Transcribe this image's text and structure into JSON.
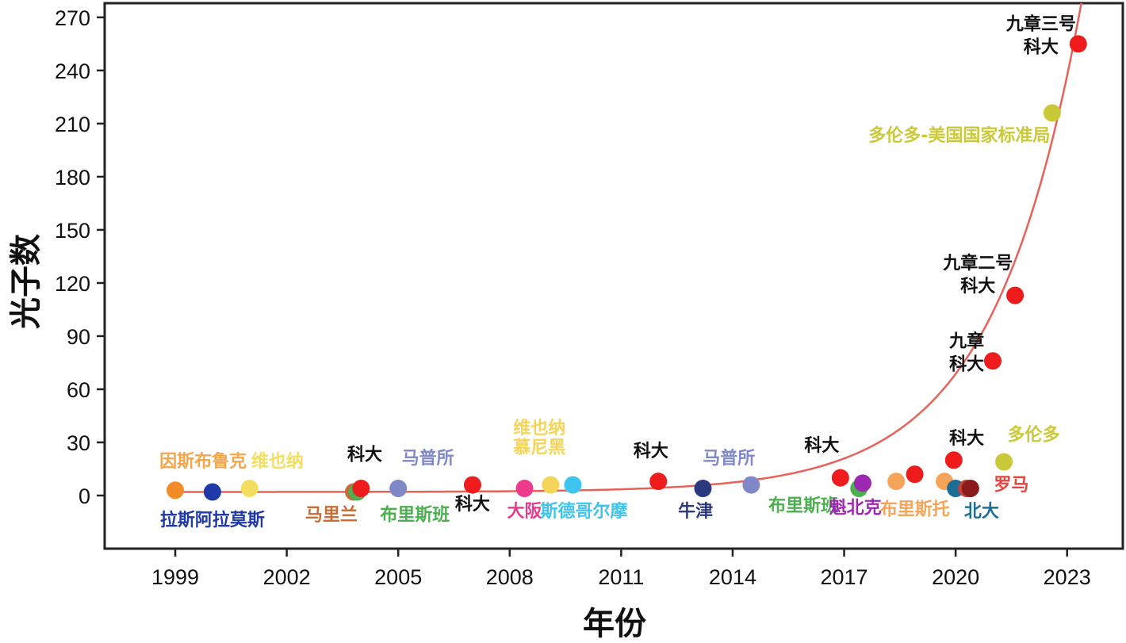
{
  "chart_data": {
    "type": "scatter",
    "title": "",
    "xlabel": "年份",
    "ylabel": "光子数",
    "xlim": [
      1997.1,
      2024.5
    ],
    "ylim": [
      -30,
      278
    ],
    "xticks": [
      1999,
      2002,
      2005,
      2008,
      2011,
      2014,
      2017,
      2020,
      2023
    ],
    "yticks": [
      0,
      30,
      60,
      90,
      120,
      150,
      180,
      210,
      240,
      270
    ],
    "grid": false,
    "trend_line": {
      "color": "#e8625a",
      "baseline": 2,
      "a": 1.0,
      "b": 0.42,
      "x0": 2010
    },
    "points": [
      {
        "x": 1999.0,
        "y": 3,
        "color": "#f28c28"
      },
      {
        "x": 2000.0,
        "y": 2,
        "color": "#1f3aa6"
      },
      {
        "x": 2001.0,
        "y": 4,
        "color": "#f3de5f"
      },
      {
        "x": 2003.8,
        "y": 2,
        "color": "#c96b35"
      },
      {
        "x": 2003.9,
        "y": 2,
        "color": "#4caf50"
      },
      {
        "x": 2004.0,
        "y": 4,
        "color": "#ee1c1c"
      },
      {
        "x": 2005.0,
        "y": 4,
        "color": "#8088c8"
      },
      {
        "x": 2007.0,
        "y": 6,
        "color": "#ee1c1c"
      },
      {
        "x": 2008.4,
        "y": 4,
        "color": "#ec3b8e"
      },
      {
        "x": 2009.1,
        "y": 6,
        "color": "#f5d45a"
      },
      {
        "x": 2009.7,
        "y": 6,
        "color": "#3fc4ee"
      },
      {
        "x": 2012.0,
        "y": 8,
        "color": "#ee1c1c"
      },
      {
        "x": 2013.2,
        "y": 4,
        "color": "#2b3a7e"
      },
      {
        "x": 2014.5,
        "y": 6,
        "color": "#8088c8"
      },
      {
        "x": 2016.9,
        "y": 10,
        "color": "#ee1c1c"
      },
      {
        "x": 2017.4,
        "y": 4,
        "color": "#4caf50"
      },
      {
        "x": 2017.5,
        "y": 7,
        "color": "#9c27b0"
      },
      {
        "x": 2018.4,
        "y": 8,
        "color": "#f5a45a"
      },
      {
        "x": 2018.9,
        "y": 12,
        "color": "#ee1c1c"
      },
      {
        "x": 2019.7,
        "y": 8,
        "color": "#f5a45a"
      },
      {
        "x": 2019.95,
        "y": 20,
        "color": "#ee1c1c"
      },
      {
        "x": 2020.0,
        "y": 4,
        "color": "#1c6e96"
      },
      {
        "x": 2020.3,
        "y": 4,
        "color": "#c6403a"
      },
      {
        "x": 2020.4,
        "y": 4,
        "color": "#8b1a1a"
      },
      {
        "x": 2021.0,
        "y": 76,
        "color": "#ee1c1c"
      },
      {
        "x": 2021.3,
        "y": 19,
        "color": "#c9c93a"
      },
      {
        "x": 2021.6,
        "y": 113,
        "color": "#ee1c1c"
      },
      {
        "x": 2022.6,
        "y": 216,
        "color": "#c9c93a"
      },
      {
        "x": 2023.3,
        "y": 255,
        "color": "#ee1c1c"
      }
    ],
    "annotations": [
      {
        "text": "因斯布鲁克",
        "x": 1999.75,
        "y": 16,
        "color": "#f5a64a"
      },
      {
        "text": "维也纳",
        "x": 2001.75,
        "y": 16,
        "color": "#f3de5f"
      },
      {
        "text": "拉斯阿拉莫斯",
        "x": 2000.0,
        "y": -17,
        "color": "#1f3aa6"
      },
      {
        "text": "科大",
        "x": 2004.1,
        "y": 20,
        "color": "#111111"
      },
      {
        "text": "马普所",
        "x": 2005.8,
        "y": 18,
        "color": "#8088c8"
      },
      {
        "text": "马里兰",
        "x": 2003.2,
        "y": -14,
        "color": "#c96b35"
      },
      {
        "text": "布里斯班",
        "x": 2005.45,
        "y": -14,
        "color": "#4caf50"
      },
      {
        "text": "科大",
        "x": 2007.0,
        "y": -8,
        "color": "#111111"
      },
      {
        "text": "维也纳",
        "x": 2008.8,
        "y": 35,
        "color": "#f5d45a"
      },
      {
        "text": "慕尼黑",
        "x": 2008.8,
        "y": 24,
        "color": "#f5d45a"
      },
      {
        "text": "大阪",
        "x": 2008.4,
        "y": -12,
        "color": "#ec3b8e"
      },
      {
        "text": "斯德哥尔摩",
        "x": 2010.0,
        "y": -12,
        "color": "#3fc4ee"
      },
      {
        "text": "科大",
        "x": 2011.8,
        "y": 22,
        "color": "#111111"
      },
      {
        "text": "马普所",
        "x": 2013.9,
        "y": 18,
        "color": "#8088c8"
      },
      {
        "text": "牛津",
        "x": 2013.0,
        "y": -12,
        "color": "#2b3a7e"
      },
      {
        "text": "布里斯班",
        "x": 2015.9,
        "y": -9,
        "color": "#4caf50"
      },
      {
        "text": "科大",
        "x": 2016.4,
        "y": 25,
        "color": "#111111"
      },
      {
        "text": "魁北克",
        "x": 2017.3,
        "y": -10,
        "color": "#9c27b0"
      },
      {
        "text": "布里斯托",
        "x": 2018.9,
        "y": -11,
        "color": "#f5a45a"
      },
      {
        "text": "北大",
        "x": 2020.7,
        "y": -12,
        "color": "#1c6e96"
      },
      {
        "text": "罗马",
        "x": 2021.5,
        "y": 3,
        "color": "#e8433d"
      },
      {
        "text": "科大",
        "x": 2020.3,
        "y": 29,
        "color": "#111111"
      },
      {
        "text": "多伦多",
        "x": 2022.1,
        "y": 31,
        "color": "#c9c93a"
      },
      {
        "text": "九章",
        "x": 2020.3,
        "y": 84,
        "color": "#111111"
      },
      {
        "text": "科大",
        "x": 2020.3,
        "y": 71,
        "color": "#111111"
      },
      {
        "text": "九章二号",
        "x": 2020.6,
        "y": 128,
        "color": "#111111"
      },
      {
        "text": "科大",
        "x": 2020.6,
        "y": 115,
        "color": "#111111"
      },
      {
        "text": "多伦多-美国国家标准局",
        "x": 2020.1,
        "y": 200,
        "color": "#c9c93a"
      },
      {
        "text": "九章三号",
        "x": 2022.3,
        "y": 263,
        "color": "#111111"
      },
      {
        "text": "科大",
        "x": 2022.3,
        "y": 250,
        "color": "#111111"
      }
    ]
  }
}
